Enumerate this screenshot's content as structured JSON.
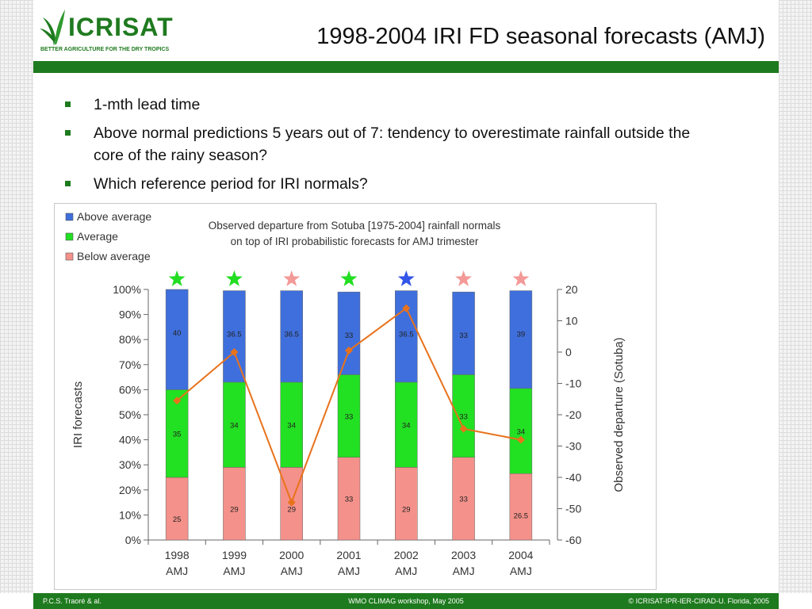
{
  "header": {
    "logo_text": "ICRISAT",
    "logo_tagline": "BETTER AGRICULTURE FOR THE DRY TROPICS",
    "title": "1998-2004 IRI FD seasonal forecasts (AMJ)"
  },
  "bullets": [
    "1-mth lead time",
    "Above normal predictions 5 years out of 7: tendency to overestimate rainfall outside the core of the rainy season?",
    "Which reference period for IRI normals?"
  ],
  "colors": {
    "brand_green": "#1e7a1e",
    "above": "#3f6fdc",
    "average": "#22e022",
    "below": "#f4918a",
    "line": "#e8721c",
    "star_green": "#22dd22",
    "star_blue": "#3355e8",
    "star_pink": "#f39a98"
  },
  "chart_data": {
    "type": "bar",
    "stacked": true,
    "title_lines": [
      "Observed departure from Sotuba [1975-2004] rainfall normals",
      "on top of IRI probabilistic forecasts for AMJ trimester"
    ],
    "categories": [
      "1998\nAMJ",
      "1999\nAMJ",
      "2000\nAMJ",
      "2001\nAMJ",
      "2002\nAMJ",
      "2003\nAMJ",
      "2004\nAMJ"
    ],
    "category_lines": [
      [
        "1998",
        "AMJ"
      ],
      [
        "1999",
        "AMJ"
      ],
      [
        "2000",
        "AMJ"
      ],
      [
        "2001",
        "AMJ"
      ],
      [
        "2002",
        "AMJ"
      ],
      [
        "2003",
        "AMJ"
      ],
      [
        "2004",
        "AMJ"
      ]
    ],
    "series": [
      {
        "name": "Below average",
        "values": [
          25,
          29,
          29,
          33,
          29,
          33,
          26.5
        ],
        "labels": [
          "25",
          "29",
          "29",
          "33",
          "29",
          "33",
          "26.5"
        ],
        "color_key": "below"
      },
      {
        "name": "Average",
        "values": [
          35,
          34,
          34,
          33,
          34,
          33,
          34
        ],
        "labels": [
          "35",
          "34",
          "34",
          "33",
          "34",
          "33",
          "34"
        ],
        "color_key": "average"
      },
      {
        "name": "Above average",
        "values": [
          40,
          36.5,
          36.5,
          33,
          36.5,
          33,
          39
        ],
        "labels": [
          "40",
          "36.5",
          "36.5",
          "33",
          "36.5",
          "33",
          "39"
        ],
        "color_key": "above"
      }
    ],
    "legend_order": [
      "Above average",
      "Average",
      "Below average"
    ],
    "legend_position": "top-left",
    "stars": [
      "star_green",
      "star_green",
      "star_pink",
      "star_green",
      "star_blue",
      "star_pink",
      "star_pink"
    ],
    "line_series": {
      "values": [
        -15.5,
        0,
        -48,
        0.5,
        14,
        -24.5,
        -28
      ]
    },
    "ylabel": "IRI forecasts",
    "y2label": "Observed departure (Sotuba)",
    "ylim": [
      0,
      100
    ],
    "y_ticks": [
      "0%",
      "10%",
      "20%",
      "30%",
      "40%",
      "50%",
      "60%",
      "70%",
      "80%",
      "90%",
      "100%"
    ],
    "y2lim": [
      -60,
      20
    ],
    "y2_ticks": [
      "-60",
      "-50",
      "-40",
      "-30",
      "-20",
      "-10",
      "0",
      "10",
      "20"
    ],
    "grid": false
  },
  "footer": {
    "left": "P.C.S. Traoré & al.",
    "center": "WMO CLIMAG workshop, May 2005",
    "right": "© ICRISAT-IPR-IER-CIRAD-U. Florida, 2005"
  }
}
